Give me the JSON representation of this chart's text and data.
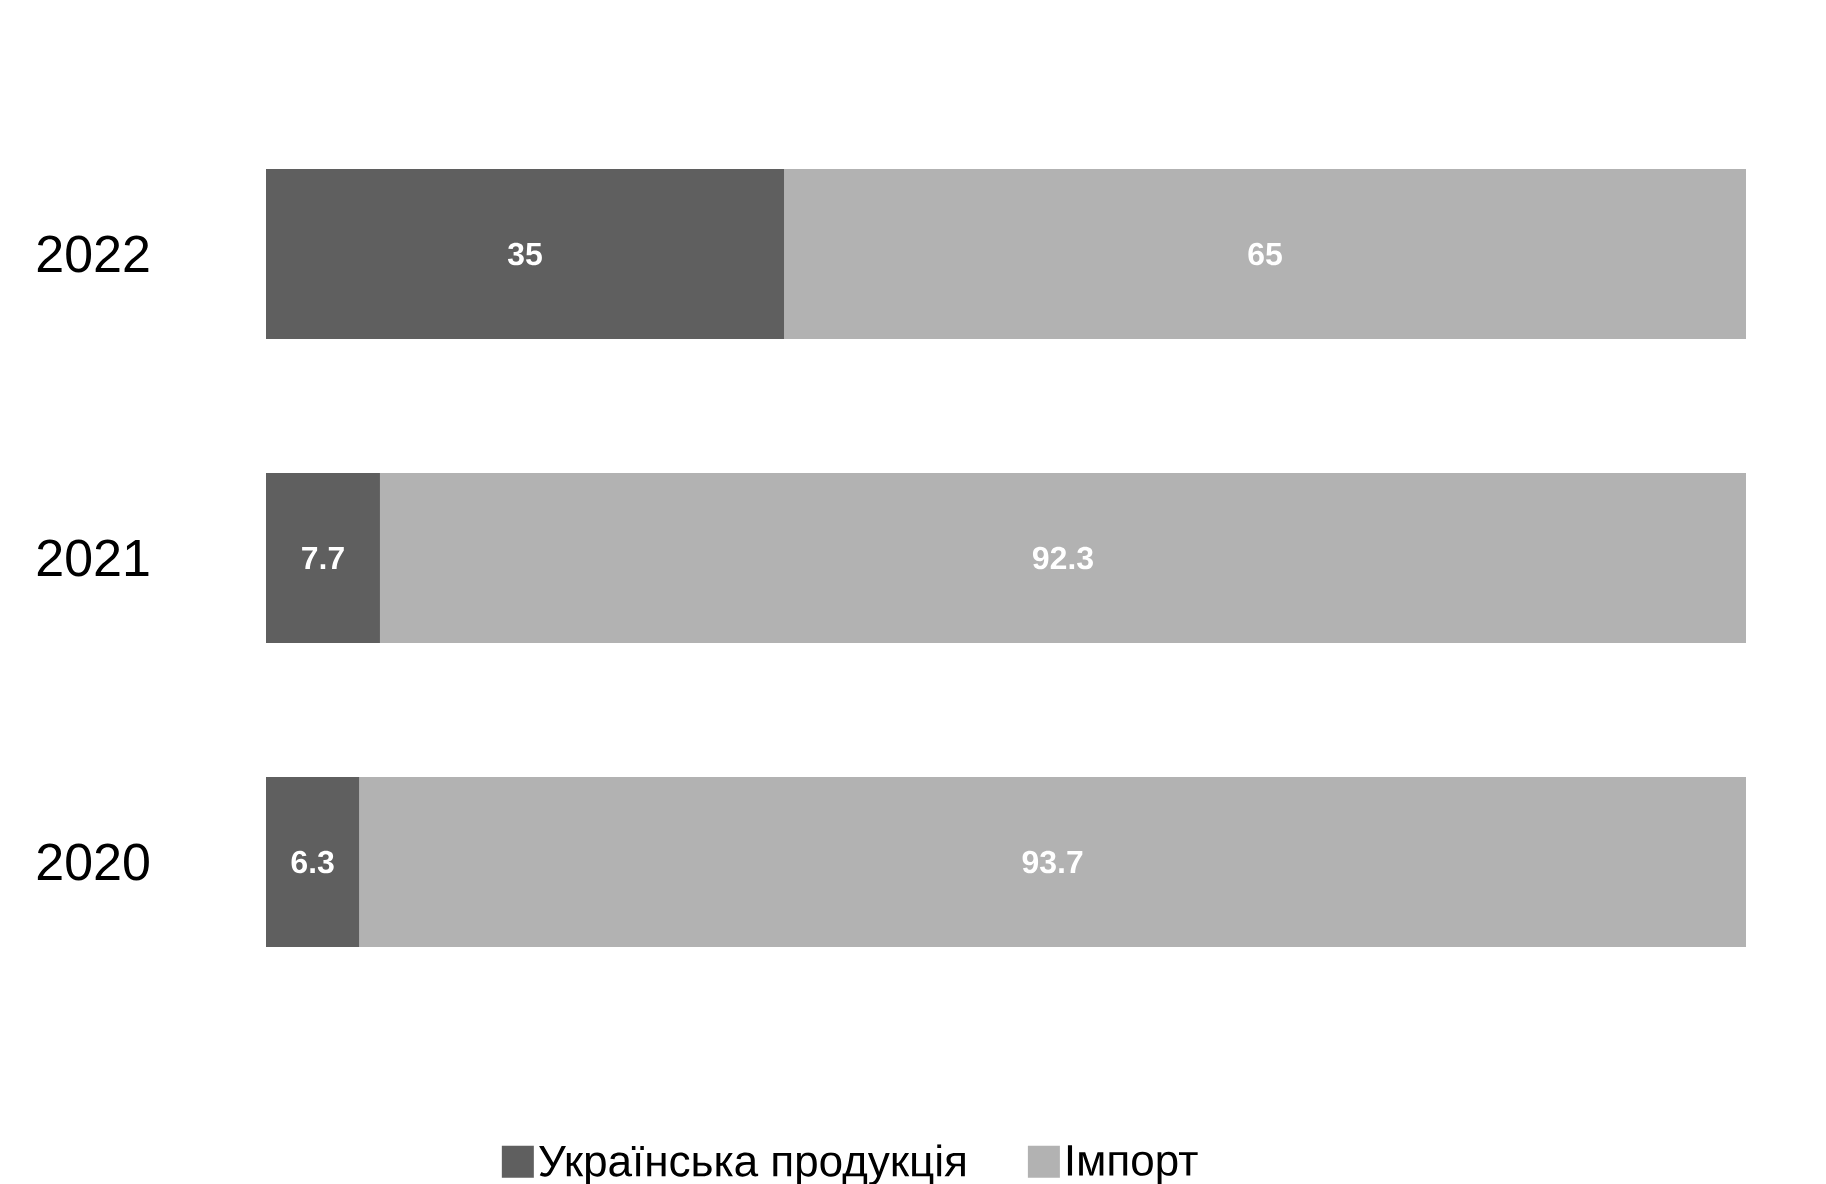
{
  "chart_data": {
    "type": "bar",
    "orientation": "horizontal",
    "stacked": true,
    "categories": [
      "2022",
      "2021",
      "2020"
    ],
    "series": [
      {
        "name": "Українська продукція",
        "color": "#5f5f5f",
        "values": [
          35,
          7.7,
          6.3
        ]
      },
      {
        "name": "Імпорт",
        "color": "#b2b2b2",
        "values": [
          65,
          92.3,
          93.7
        ]
      }
    ],
    "data_labels": true,
    "legend": "bottom",
    "tick_labels": "y"
  }
}
